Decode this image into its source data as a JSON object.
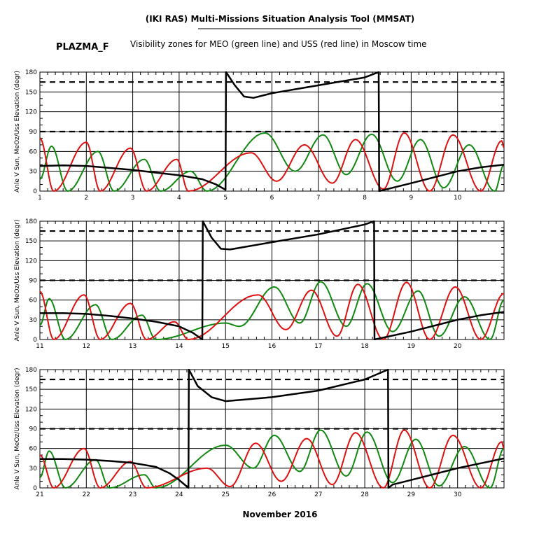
{
  "header": {
    "title": "(IKI RAS) Multi-Missions Situation Analysis Tool (MMSAT)",
    "satellite": "PLAZMA_F",
    "subtitle": "Visibility zones for MEO (green line) and USS (red line) in Moscow time"
  },
  "footer": {
    "month_label": "November 2016"
  },
  "colors": {
    "sun_angle": "#000000",
    "meo": "#118811",
    "uss": "#dd1111",
    "grid": "#000000",
    "threshold": "#000000"
  },
  "chart_data": [
    {
      "type": "line",
      "xlim": [
        1,
        11
      ],
      "ylim": [
        0,
        180
      ],
      "ylabel": "Anle V Sun, MeOz/Uss Elevation (degr)",
      "xticks": [
        1,
        2,
        3,
        4,
        5,
        6,
        7,
        8,
        9,
        10
      ],
      "xtick_labels": [
        "1",
        "2",
        "3",
        "4",
        "5",
        "6",
        "7",
        "8",
        "9",
        "10"
      ],
      "yticks": [
        0,
        30,
        60,
        90,
        120,
        150,
        180
      ],
      "ytick_labels": [
        "0",
        "30",
        "60",
        "90",
        "120",
        "150",
        "180"
      ],
      "thresholds": [
        90,
        165
      ],
      "sun_angle": [
        [
          1.0,
          38
        ],
        [
          1.5,
          39
        ],
        [
          2.0,
          38
        ],
        [
          2.5,
          35
        ],
        [
          3.0,
          32
        ],
        [
          3.5,
          28
        ],
        [
          4.0,
          24
        ],
        [
          4.5,
          18
        ],
        [
          4.8,
          10
        ],
        [
          5.0,
          2
        ],
        [
          5.01,
          180
        ],
        [
          5.2,
          160
        ],
        [
          5.4,
          143
        ],
        [
          5.6,
          141
        ],
        [
          6.0,
          148
        ],
        [
          7.0,
          160
        ],
        [
          8.0,
          172
        ],
        [
          8.3,
          180
        ],
        [
          8.31,
          0
        ],
        [
          9.0,
          12
        ],
        [
          10.0,
          30
        ],
        [
          10.5,
          36
        ],
        [
          11.0,
          40
        ]
      ],
      "meo_peaks": [
        [
          1.25,
          68
        ],
        [
          2.25,
          60
        ],
        [
          3.25,
          48
        ],
        [
          4.25,
          30
        ],
        [
          5.85,
          88
        ],
        [
          7.1,
          85
        ],
        [
          8.15,
          86
        ],
        [
          9.2,
          78
        ],
        [
          10.25,
          70
        ]
      ],
      "meo_troughs": [
        [
          1.6,
          0
        ],
        [
          2.6,
          0
        ],
        [
          3.6,
          0
        ],
        [
          4.6,
          0
        ],
        [
          6.5,
          30
        ],
        [
          7.6,
          25
        ],
        [
          8.7,
          15
        ],
        [
          9.7,
          5
        ],
        [
          10.8,
          0
        ]
      ],
      "uss_peaks": [
        [
          1.0,
          80
        ],
        [
          2.0,
          74
        ],
        [
          2.95,
          65
        ],
        [
          3.95,
          48
        ],
        [
          5.55,
          58
        ],
        [
          6.7,
          70
        ],
        [
          7.8,
          78
        ],
        [
          8.85,
          88
        ],
        [
          9.9,
          85
        ],
        [
          10.95,
          76
        ]
      ],
      "uss_troughs": [
        [
          1.3,
          0
        ],
        [
          2.3,
          0
        ],
        [
          3.3,
          0
        ],
        [
          4.2,
          0
        ],
        [
          6.1,
          15
        ],
        [
          7.3,
          12
        ],
        [
          8.4,
          3
        ],
        [
          9.4,
          0
        ],
        [
          10.5,
          0
        ]
      ]
    },
    {
      "type": "line",
      "xlim": [
        11,
        21
      ],
      "ylim": [
        0,
        180
      ],
      "ylabel": "Anle V Sun, MeOz/Uss Elevation (degr)",
      "xticks": [
        11,
        12,
        13,
        14,
        15,
        16,
        17,
        18,
        19,
        20
      ],
      "xtick_labels": [
        "11",
        "12",
        "13",
        "14",
        "15",
        "16",
        "17",
        "18",
        "19",
        "20"
      ],
      "yticks": [
        0,
        30,
        60,
        90,
        120,
        150,
        180
      ],
      "ytick_labels": [
        "0",
        "30",
        "60",
        "90",
        "120",
        "150",
        "180"
      ],
      "thresholds": [
        90,
        165
      ],
      "sun_angle": [
        [
          11.0,
          40
        ],
        [
          11.5,
          40
        ],
        [
          12.0,
          39
        ],
        [
          12.5,
          36
        ],
        [
          13.0,
          32
        ],
        [
          13.5,
          27
        ],
        [
          14.0,
          20
        ],
        [
          14.3,
          10
        ],
        [
          14.5,
          0
        ],
        [
          14.51,
          180
        ],
        [
          14.7,
          155
        ],
        [
          14.9,
          138
        ],
        [
          15.1,
          137
        ],
        [
          16.0,
          148
        ],
        [
          17.0,
          160
        ],
        [
          18.0,
          175
        ],
        [
          18.2,
          180
        ],
        [
          18.21,
          0
        ],
        [
          19.0,
          12
        ],
        [
          20.0,
          30
        ],
        [
          20.5,
          37
        ],
        [
          21.0,
          42
        ]
      ],
      "meo_peaks": [
        [
          11.2,
          62
        ],
        [
          12.2,
          53
        ],
        [
          13.2,
          37
        ],
        [
          15.0,
          25
        ],
        [
          16.05,
          80
        ],
        [
          17.05,
          88
        ],
        [
          18.05,
          85
        ],
        [
          19.15,
          74
        ],
        [
          20.15,
          65
        ]
      ],
      "meo_troughs": [
        [
          11.55,
          0
        ],
        [
          12.55,
          0
        ],
        [
          13.5,
          0
        ],
        [
          15.3,
          20
        ],
        [
          16.6,
          25
        ],
        [
          17.6,
          20
        ],
        [
          18.6,
          12
        ],
        [
          19.6,
          5
        ],
        [
          20.7,
          0
        ]
      ],
      "uss_peaks": [
        [
          11.0,
          73
        ],
        [
          11.95,
          68
        ],
        [
          12.95,
          55
        ],
        [
          13.9,
          27
        ],
        [
          15.7,
          68
        ],
        [
          16.85,
          75
        ],
        [
          17.85,
          84
        ],
        [
          18.9,
          87
        ],
        [
          19.95,
          80
        ],
        [
          21.0,
          70
        ]
      ],
      "uss_troughs": [
        [
          11.3,
          0
        ],
        [
          12.3,
          0
        ],
        [
          13.3,
          0
        ],
        [
          14.2,
          0
        ],
        [
          16.3,
          15
        ],
        [
          17.4,
          5
        ],
        [
          18.4,
          0
        ],
        [
          19.4,
          0
        ],
        [
          20.5,
          0
        ]
      ]
    },
    {
      "type": "line",
      "xlim": [
        21,
        31
      ],
      "ylim": [
        0,
        180
      ],
      "ylabel": "Anle V Sun, MeOz/Uss Elevation (degr)",
      "xticks": [
        21,
        22,
        23,
        24,
        25,
        26,
        27,
        28,
        29,
        30
      ],
      "xtick_labels": [
        "21",
        "22",
        "23",
        "24",
        "25",
        "26",
        "27",
        "28",
        "29",
        "30"
      ],
      "yticks": [
        0,
        30,
        60,
        90,
        120,
        150,
        180
      ],
      "ytick_labels": [
        "0",
        "30",
        "60",
        "90",
        "120",
        "150",
        "180"
      ],
      "thresholds": [
        90,
        165
      ],
      "sun_angle": [
        [
          21.0,
          44
        ],
        [
          21.5,
          44
        ],
        [
          22.0,
          43
        ],
        [
          22.5,
          41
        ],
        [
          23.0,
          38
        ],
        [
          23.5,
          32
        ],
        [
          23.8,
          22
        ],
        [
          24.0,
          12
        ],
        [
          24.2,
          0
        ],
        [
          24.21,
          180
        ],
        [
          24.4,
          155
        ],
        [
          24.7,
          138
        ],
        [
          25.0,
          132
        ],
        [
          26.0,
          138
        ],
        [
          27.0,
          148
        ],
        [
          28.0,
          165
        ],
        [
          28.5,
          180
        ],
        [
          28.51,
          0
        ],
        [
          28.6,
          5
        ],
        [
          29.0,
          12
        ],
        [
          30.0,
          30
        ],
        [
          31.0,
          45
        ]
      ],
      "meo_peaks": [
        [
          21.2,
          56
        ],
        [
          22.2,
          43
        ],
        [
          23.25,
          20
        ],
        [
          25.0,
          65
        ],
        [
          26.05,
          80
        ],
        [
          27.05,
          88
        ],
        [
          28.05,
          85
        ],
        [
          29.1,
          74
        ],
        [
          30.15,
          63
        ]
      ],
      "meo_troughs": [
        [
          21.55,
          0
        ],
        [
          22.5,
          0
        ],
        [
          23.5,
          0
        ],
        [
          25.6,
          30
        ],
        [
          26.6,
          25
        ],
        [
          27.6,
          18
        ],
        [
          28.6,
          8
        ],
        [
          29.6,
          3
        ],
        [
          30.7,
          0
        ]
      ],
      "uss_peaks": [
        [
          21.0,
          50
        ],
        [
          21.95,
          60
        ],
        [
          22.95,
          40
        ],
        [
          24.6,
          30
        ],
        [
          25.65,
          68
        ],
        [
          26.75,
          75
        ],
        [
          27.8,
          84
        ],
        [
          28.85,
          88
        ],
        [
          29.9,
          80
        ],
        [
          30.95,
          70
        ]
      ],
      "uss_troughs": [
        [
          21.3,
          0
        ],
        [
          22.3,
          0
        ],
        [
          23.3,
          0
        ],
        [
          25.1,
          2
        ],
        [
          26.2,
          10
        ],
        [
          27.3,
          5
        ],
        [
          28.4,
          0
        ],
        [
          29.4,
          0
        ],
        [
          30.5,
          0
        ]
      ]
    }
  ]
}
